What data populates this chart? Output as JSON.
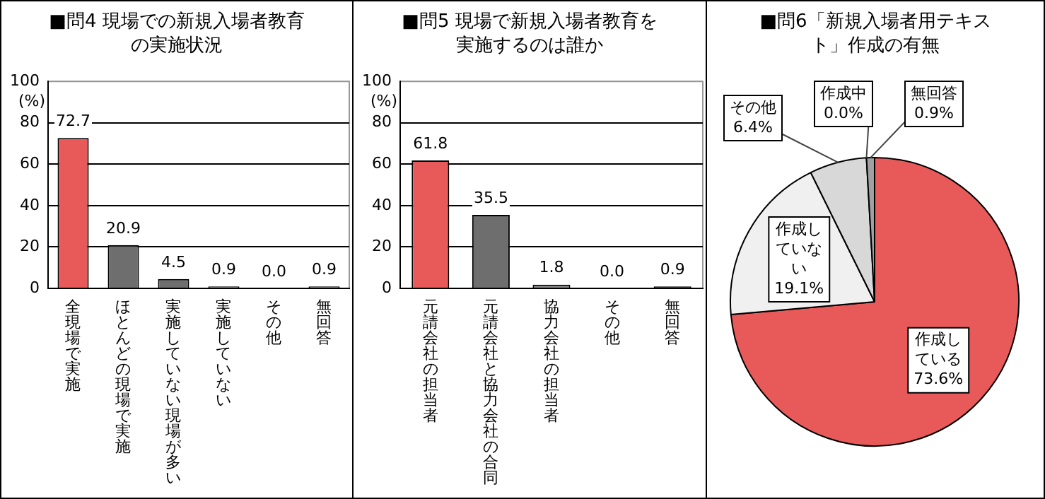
{
  "chart_data": [
    {
      "type": "bar",
      "title": "■問4 現場での新規入場者教育の実施状況",
      "ylabel": "(%)",
      "categories": [
        "全現場で実施",
        "ほとんどの現場で実施",
        "実施していない現場が多い",
        "実施していない",
        "その他",
        "無回答"
      ],
      "values": [
        72.7,
        20.9,
        4.5,
        0.9,
        0.0,
        0.9
      ],
      "value_labels": [
        "72.7",
        "20.9",
        "4.5",
        "0.9",
        "0.0",
        "0.9"
      ],
      "colors": [
        "#e85a5a",
        "#6e6e6e",
        "#6e6e6e",
        "#6e6e6e",
        "#6e6e6e",
        "#6e6e6e"
      ],
      "ylim": [
        0,
        100
      ],
      "yticks": [
        0,
        20,
        40,
        60,
        80,
        100
      ],
      "grid": "y"
    },
    {
      "type": "bar",
      "title": "■問5 現場で新規入場者教育を実施するのは誰か",
      "ylabel": "(%)",
      "categories": [
        "元請会社の担当者",
        "元請会社と協力会社の合同",
        "協力会社の担当者",
        "その他",
        "無回答"
      ],
      "values": [
        61.8,
        35.5,
        1.8,
        0.0,
        0.9
      ],
      "value_labels": [
        "61.8",
        "35.5",
        "1.8",
        "0.0",
        "0.9"
      ],
      "colors": [
        "#e85a5a",
        "#6e6e6e",
        "#8c8c8c",
        "#6e6e6e",
        "#111111"
      ],
      "ylim": [
        0,
        100
      ],
      "yticks": [
        0,
        20,
        40,
        60,
        80,
        100
      ],
      "grid": "y"
    },
    {
      "type": "pie",
      "title": "■問6「新規入場者用テキスト」作成の有無",
      "categories": [
        "作成している",
        "作成していない",
        "その他",
        "作成中",
        "無回答"
      ],
      "values": [
        73.6,
        19.1,
        6.4,
        0.0,
        0.9
      ],
      "value_labels": [
        "73.6%",
        "19.1%",
        "6.4%",
        "0.0%",
        "0.9%"
      ],
      "colors": [
        "#e85a5a",
        "#f0f0f0",
        "#d8d8d8",
        "#ffffff",
        "#a0a0a0"
      ]
    }
  ]
}
